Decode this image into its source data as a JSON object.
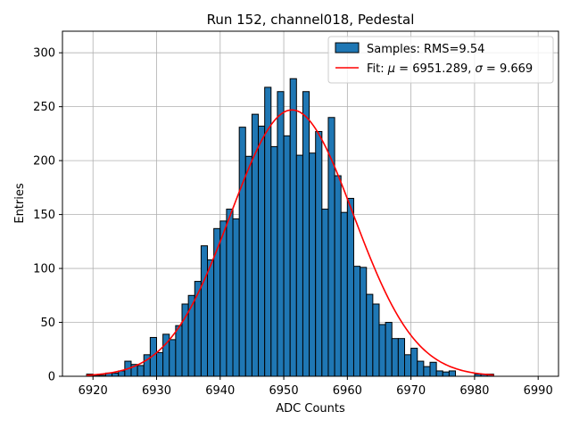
{
  "chart_data": {
    "type": "bar",
    "title": "Run 152, channel018, Pedestal",
    "xlabel": "ADC Counts",
    "ylabel": "Entries",
    "xlim": [
      6915.2,
      6993.2
    ],
    "ylim": [
      0,
      320
    ],
    "xticks": [
      6920,
      6930,
      6940,
      6950,
      6960,
      6970,
      6980,
      6990
    ],
    "yticks": [
      0,
      50,
      100,
      150,
      200,
      250,
      300
    ],
    "grid": true,
    "bin_start": 6919,
    "bin_width": 1,
    "values": [
      2,
      1,
      1,
      3,
      3,
      5,
      14,
      11,
      10,
      20,
      36,
      22,
      39,
      34,
      47,
      67,
      75,
      88,
      121,
      108,
      137,
      144,
      155,
      146,
      231,
      204,
      243,
      232,
      268,
      213,
      264,
      223,
      276,
      205,
      264,
      207,
      227,
      155,
      240,
      186,
      152,
      165,
      102,
      101,
      76,
      67,
      48,
      50,
      35,
      35,
      20,
      26,
      14,
      9,
      13,
      5,
      4,
      5,
      0,
      0,
      0,
      2,
      2,
      2
    ],
    "series": [
      {
        "name": "Samples: RMS=9.54",
        "kind": "histogram",
        "color": "#1f77b4",
        "edgecolor": "#000000"
      },
      {
        "name": "Fit",
        "kind": "gaussian",
        "color": "#ff0000",
        "mu": 6951.289,
        "sigma": 9.669,
        "amplitude": 247,
        "x_range": [
          6919,
          6983
        ]
      }
    ],
    "legend": {
      "position": "top-right",
      "samples_label": "Samples: RMS=9.54",
      "fit_prefix": "Fit: ",
      "mu_symbol": "μ",
      "sigma_symbol": "σ",
      "mu_value": "6951.289",
      "sigma_value": "9.669",
      "equals": " = ",
      "separator": ", "
    }
  }
}
